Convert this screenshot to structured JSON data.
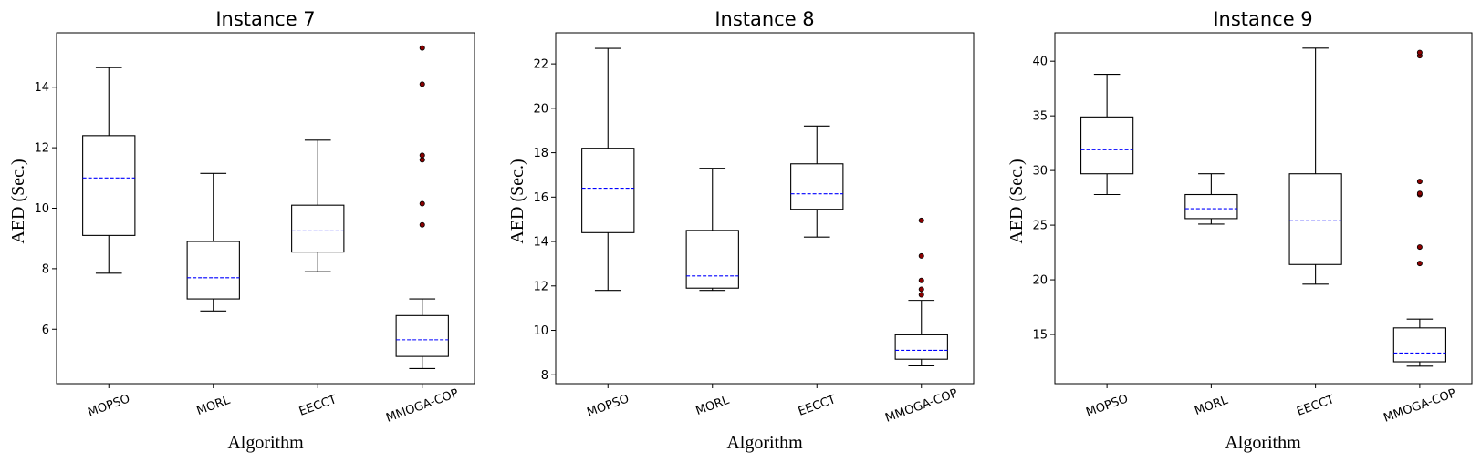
{
  "style": {
    "box_color": "#000000",
    "median_color": "#0000ff",
    "outlier_fill": "#8b0000"
  },
  "chart_data": [
    {
      "type": "box",
      "title": "Instance 7",
      "xlabel": "Algorithm",
      "ylabel": "AED (Sec.)",
      "ylim": [
        4.2,
        15.8
      ],
      "yticks": [
        6,
        8,
        10,
        12,
        14
      ],
      "categories": [
        "MOPSO",
        "MORL",
        "EECCT",
        "MMOGA-COP"
      ],
      "boxes": [
        {
          "whislo": 7.85,
          "q1": 9.1,
          "med": 11.0,
          "q3": 12.4,
          "whishi": 14.65,
          "fliers": []
        },
        {
          "whislo": 6.6,
          "q1": 7.0,
          "med": 7.7,
          "q3": 8.9,
          "whishi": 11.15,
          "fliers": []
        },
        {
          "whislo": 7.9,
          "q1": 8.55,
          "med": 9.25,
          "q3": 10.1,
          "whishi": 12.25,
          "fliers": []
        },
        {
          "whislo": 4.7,
          "q1": 5.1,
          "med": 5.65,
          "q3": 6.45,
          "whishi": 7.0,
          "fliers": [
            9.45,
            10.15,
            11.6,
            11.75,
            14.1,
            15.3
          ]
        }
      ]
    },
    {
      "type": "box",
      "title": "Instance 8",
      "xlabel": "Algorithm",
      "ylabel": "AED (Sec.)",
      "ylim": [
        7.6,
        23.4
      ],
      "yticks": [
        8,
        10,
        12,
        14,
        16,
        18,
        20,
        22
      ],
      "categories": [
        "MOPSO",
        "MORL",
        "EECCT",
        "MMOGA-COP"
      ],
      "boxes": [
        {
          "whislo": 11.8,
          "q1": 14.4,
          "med": 16.4,
          "q3": 18.2,
          "whishi": 22.7,
          "fliers": []
        },
        {
          "whislo": 11.8,
          "q1": 11.9,
          "med": 12.45,
          "q3": 14.5,
          "whishi": 17.3,
          "fliers": []
        },
        {
          "whislo": 14.2,
          "q1": 15.45,
          "med": 16.15,
          "q3": 17.5,
          "whishi": 19.2,
          "fliers": []
        },
        {
          "whislo": 8.4,
          "q1": 8.7,
          "med": 9.1,
          "q3": 9.8,
          "whishi": 11.35,
          "fliers": [
            11.6,
            11.85,
            12.25,
            13.35,
            14.95
          ]
        }
      ]
    },
    {
      "type": "box",
      "title": "Instance 9",
      "xlabel": "Algorithm",
      "ylabel": "AED (Sec.)",
      "ylim": [
        10.5,
        42.6
      ],
      "yticks": [
        15,
        20,
        25,
        30,
        35,
        40
      ],
      "categories": [
        "MOPSO",
        "MORL",
        "EECCT",
        "MMOGA-COP"
      ],
      "boxes": [
        {
          "whislo": 27.8,
          "q1": 29.7,
          "med": 31.9,
          "q3": 34.9,
          "whishi": 38.8,
          "fliers": []
        },
        {
          "whislo": 25.1,
          "q1": 25.6,
          "med": 26.5,
          "q3": 27.8,
          "whishi": 29.7,
          "fliers": []
        },
        {
          "whislo": 19.6,
          "q1": 21.4,
          "med": 25.4,
          "q3": 29.7,
          "whishi": 41.2,
          "fliers": []
        },
        {
          "whislo": 12.1,
          "q1": 12.5,
          "med": 13.3,
          "q3": 15.6,
          "whishi": 16.4,
          "fliers": [
            21.5,
            23.0,
            27.8,
            27.9,
            29.0,
            40.5,
            40.8
          ]
        }
      ]
    }
  ]
}
